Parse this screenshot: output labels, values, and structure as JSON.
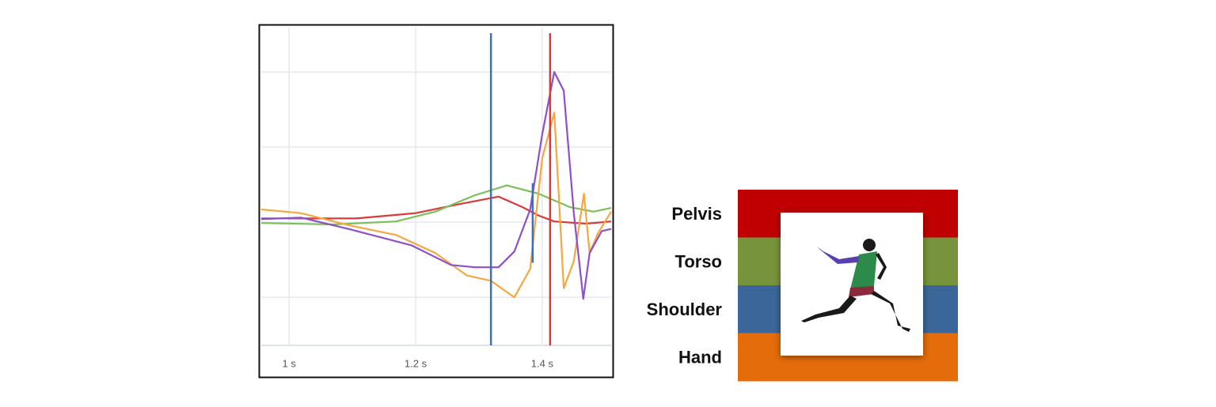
{
  "chart_data": {
    "type": "line",
    "xlim": [
      0.956,
      1.509
    ],
    "ylim": [
      -1.64,
      2.59
    ],
    "xticks": [
      {
        "value": 1,
        "label": "1 s"
      },
      {
        "value": 1.2,
        "label": "1.2 s"
      },
      {
        "value": 1.4,
        "label": "1.4 s"
      }
    ],
    "yticks": [
      -1,
      0,
      1,
      2
    ],
    "grid": true,
    "series": [
      {
        "color": "#d93b3b",
        "x": [
          0.956,
          1.106,
          1.2,
          1.269,
          1.331,
          1.369,
          1.394,
          1.419,
          1.469,
          1.509
        ],
        "values": [
          0.05,
          0.05,
          0.12,
          0.24,
          0.34,
          0.2,
          0.09,
          0.01,
          -0.02,
          0.01
        ]
      },
      {
        "color": "#7cc05a",
        "x": [
          0.956,
          1.069,
          1.169,
          1.231,
          1.294,
          1.344,
          1.394,
          1.444,
          1.481,
          1.509
        ],
        "values": [
          -0.01,
          -0.03,
          0.01,
          0.14,
          0.36,
          0.49,
          0.38,
          0.2,
          0.14,
          0.19
        ]
      },
      {
        "color": "#f5a742",
        "x": [
          0.956,
          1.019,
          1.094,
          1.169,
          1.231,
          1.281,
          1.319,
          1.356,
          1.381,
          1.4,
          1.419,
          1.425,
          1.434,
          1.45,
          1.466,
          1.475,
          1.488,
          1.509
        ],
        "values": [
          0.17,
          0.12,
          -0.04,
          -0.17,
          -0.41,
          -0.71,
          -0.78,
          -1.0,
          -0.62,
          0.85,
          1.46,
          0.54,
          -0.88,
          -0.52,
          0.38,
          -0.41,
          -0.15,
          0.14
        ]
      },
      {
        "color": "#8e4fc9",
        "x": [
          0.956,
          1.019,
          1.094,
          1.194,
          1.256,
          1.294,
          1.331,
          1.356,
          1.381,
          1.4,
          1.419,
          1.434,
          1.45,
          1.465,
          1.475,
          1.494,
          1.509
        ],
        "values": [
          0.04,
          0.06,
          -0.09,
          -0.31,
          -0.57,
          -0.6,
          -0.6,
          -0.39,
          0.17,
          1.17,
          2.0,
          1.75,
          0.12,
          -1.02,
          -0.41,
          -0.12,
          -0.09
        ]
      }
    ],
    "markers": [
      {
        "x": 1.319,
        "color": "#3c6fc2"
      },
      {
        "x": 1.4125,
        "color": "#d63a3a"
      },
      {
        "x": 1.385,
        "y": [
          -0.54,
          0.52
        ],
        "color": "#3c6fc2"
      }
    ]
  },
  "legend": [
    {
      "name": "Pelvis",
      "color": "#c00000"
    },
    {
      "name": "Torso",
      "color": "#77933c"
    },
    {
      "name": "Shoulder",
      "color": "#3a6699"
    },
    {
      "name": "Hand",
      "color": "#e46c0a"
    }
  ]
}
